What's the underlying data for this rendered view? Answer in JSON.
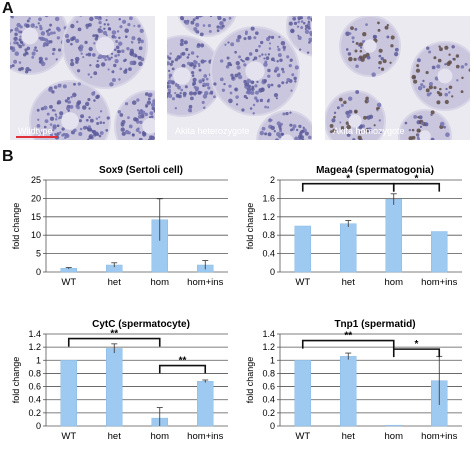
{
  "panel_labels": {
    "a": "A",
    "b": "B"
  },
  "micrographs": [
    {
      "label": "Wildtype"
    },
    {
      "label": "Akita heterozygote"
    },
    {
      "label": "Akita homozygote"
    }
  ],
  "colors": {
    "bar": "#9ec9f0",
    "bar_edge": "#8cbce6",
    "scale_bar": "#e0303a"
  },
  "chart_data": [
    {
      "type": "bar",
      "title": "Sox9 (Sertoli cell)",
      "ylabel": "fold change",
      "categories": [
        "WT",
        "het",
        "hom",
        "hom+ins"
      ],
      "values": [
        1.0,
        1.9,
        14.2,
        1.9
      ],
      "errors": [
        0.2,
        0.6,
        5.7,
        1.2
      ],
      "ylim": [
        0,
        25
      ],
      "yticks": [
        "0",
        "5",
        "10",
        "15",
        "20",
        "25"
      ],
      "grid": true,
      "brackets": []
    },
    {
      "type": "bar",
      "title": "Magea4 (spermatogonia)",
      "ylabel": "fold change",
      "categories": [
        "WT",
        "het",
        "hom",
        "hom+ins"
      ],
      "values": [
        1.0,
        1.05,
        1.58,
        0.88
      ],
      "errors": [
        0.0,
        0.07,
        0.12,
        0.0
      ],
      "ylim": [
        0,
        2
      ],
      "yticks": [
        "0",
        "0.4",
        "0.8",
        "1.2",
        "1.6",
        "2"
      ],
      "grid": true,
      "brackets": [
        {
          "from": 0,
          "to": 2,
          "y": 1.92,
          "label": "*"
        },
        {
          "from": 2,
          "to": 3,
          "y": 1.92,
          "label": "*"
        }
      ]
    },
    {
      "type": "bar",
      "title": "CytC (spermatocyte)",
      "ylabel": "fold change",
      "categories": [
        "WT",
        "het",
        "hom",
        "hom+ins"
      ],
      "values": [
        1.0,
        1.18,
        0.12,
        0.68
      ],
      "errors": [
        0.0,
        0.07,
        0.16,
        0.02
      ],
      "ylim": [
        0,
        1.4
      ],
      "yticks": [
        "0",
        "0.2",
        "0.4",
        "0.6",
        "0.8",
        "1",
        "1.2",
        "1.4"
      ],
      "grid": true,
      "brackets": [
        {
          "from": 0,
          "to": 2,
          "y": 1.33,
          "label": "**"
        },
        {
          "from": 2,
          "to": 3,
          "y": 0.92,
          "label": "**"
        }
      ]
    },
    {
      "type": "bar",
      "title": "Tnp1 (spermatid)",
      "ylabel": "fold change",
      "categories": [
        "WT",
        "het",
        "hom",
        "hom+ins"
      ],
      "values": [
        1.0,
        1.06,
        0.01,
        0.69
      ],
      "errors": [
        0.0,
        0.05,
        0.0,
        0.37
      ],
      "ylim": [
        0,
        1.4
      ],
      "yticks": [
        "0",
        "0.2",
        "0.4",
        "0.6",
        "0.8",
        "1",
        "1.2",
        "1.4"
      ],
      "grid": true,
      "brackets": [
        {
          "from": 0,
          "to": 2,
          "y": 1.3,
          "label": "**"
        },
        {
          "from": 2,
          "to": 3,
          "y": 1.17,
          "label": "*"
        }
      ]
    }
  ]
}
